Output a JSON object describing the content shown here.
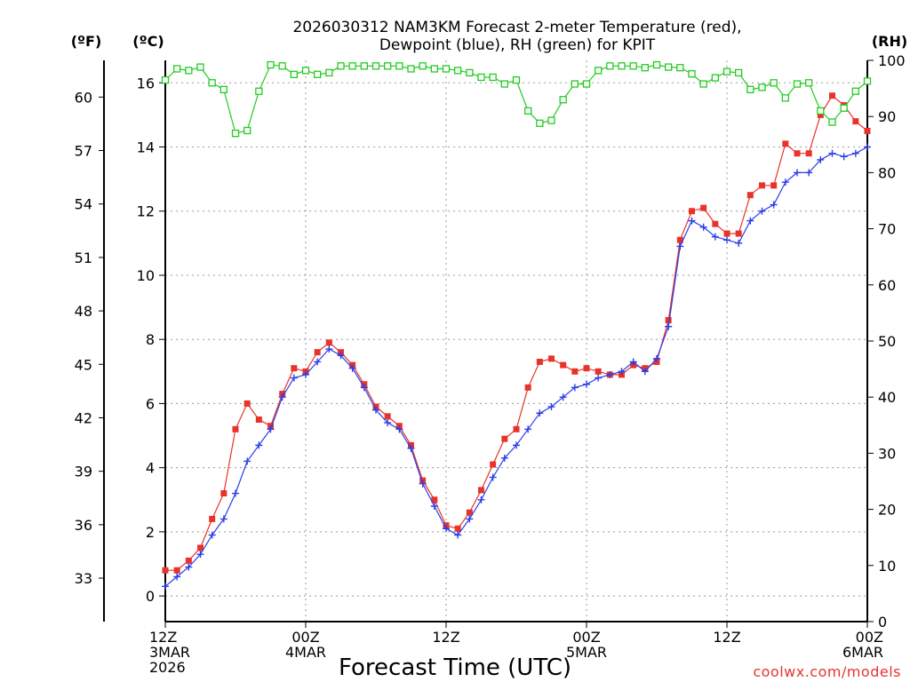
{
  "chart_data": {
    "type": "line",
    "title_line1": "2026030312 NAM3KM Forecast 2-meter Temperature (red),",
    "title_line2": "Dewpoint (blue), RH (green) for KPIT",
    "xlabel": "Forecast Time (UTC)",
    "credit": "coolwx.com/models",
    "unit_f": "(ºF)",
    "unit_c": "(ºC)",
    "unit_rh": "(RH)",
    "x_range_hours": [
      0,
      60
    ],
    "ylim_c": [
      -0.8,
      16.7
    ],
    "ylim_rh": [
      0,
      100
    ],
    "x_ticks": [
      {
        "hour": 0,
        "lines": [
          "12Z",
          "3MAR",
          "2026"
        ]
      },
      {
        "hour": 12,
        "lines": [
          "00Z",
          "4MAR"
        ]
      },
      {
        "hour": 24,
        "lines": [
          "12Z"
        ]
      },
      {
        "hour": 36,
        "lines": [
          "00Z",
          "5MAR"
        ]
      },
      {
        "hour": 48,
        "lines": [
          "12Z"
        ]
      },
      {
        "hour": 60,
        "lines": [
          "00Z",
          "6MAR"
        ]
      }
    ],
    "c_ticks": [
      0,
      2,
      4,
      6,
      8,
      10,
      12,
      14,
      16
    ],
    "f_ticks": [
      33,
      36,
      39,
      42,
      45,
      48,
      51,
      54,
      57,
      60
    ],
    "rh_ticks": [
      0,
      10,
      20,
      30,
      40,
      50,
      60,
      70,
      80,
      90,
      100
    ],
    "colors": {
      "temperature": "#e8332b",
      "dewpoint": "#2b3ee8",
      "rh": "#22cc22",
      "grid": "#9a9a9a"
    },
    "series": [
      {
        "name": "Temperature (°C)",
        "key": "temperature",
        "marker": "square",
        "x": [
          0,
          1,
          2,
          3,
          4,
          5,
          6,
          7,
          8,
          9,
          10,
          11,
          12,
          13,
          14,
          15,
          16,
          17,
          18,
          19,
          20,
          21,
          22,
          23,
          24,
          25,
          26,
          27,
          28,
          29,
          30,
          31,
          32,
          33,
          34,
          35,
          36,
          37,
          38,
          39,
          40,
          41,
          42,
          43,
          44,
          45,
          46,
          47,
          48,
          49,
          50,
          51,
          52,
          53,
          54,
          55,
          56,
          57,
          58,
          59,
          60
        ],
        "values": [
          0.8,
          0.8,
          1.1,
          1.5,
          2.4,
          3.2,
          5.2,
          6.0,
          5.5,
          5.3,
          6.3,
          7.1,
          7.0,
          7.6,
          7.9,
          7.6,
          7.2,
          6.6,
          5.9,
          5.6,
          5.3,
          4.7,
          3.6,
          3.0,
          2.2,
          2.1,
          2.6,
          3.3,
          4.1,
          4.9,
          5.2,
          6.5,
          7.3,
          7.4,
          7.2,
          7.0,
          7.1,
          7.0,
          6.9,
          6.9,
          7.2,
          7.1,
          7.3,
          8.6,
          11.1,
          12.0,
          12.1,
          11.6,
          11.3,
          11.3,
          12.5,
          12.8,
          12.8,
          14.1,
          13.8,
          13.8,
          15.0,
          15.6,
          15.3,
          14.8,
          14.5
        ]
      },
      {
        "name": "Dewpoint (°C)",
        "key": "dewpoint",
        "marker": "plus",
        "x": [
          0,
          1,
          2,
          3,
          4,
          5,
          6,
          7,
          8,
          9,
          10,
          11,
          12,
          13,
          14,
          15,
          16,
          17,
          18,
          19,
          20,
          21,
          22,
          23,
          24,
          25,
          26,
          27,
          28,
          29,
          30,
          31,
          32,
          33,
          34,
          35,
          36,
          37,
          38,
          39,
          40,
          41,
          42,
          43,
          44,
          45,
          46,
          47,
          48,
          49,
          50,
          51,
          52,
          53,
          54,
          55,
          56,
          57,
          58,
          59,
          60
        ],
        "values": [
          0.3,
          0.6,
          0.9,
          1.3,
          1.9,
          2.4,
          3.2,
          4.2,
          4.7,
          5.2,
          6.2,
          6.8,
          6.9,
          7.3,
          7.7,
          7.5,
          7.1,
          6.5,
          5.8,
          5.4,
          5.2,
          4.6,
          3.5,
          2.8,
          2.1,
          1.9,
          2.4,
          3.0,
          3.7,
          4.3,
          4.7,
          5.2,
          5.7,
          5.9,
          6.2,
          6.5,
          6.6,
          6.8,
          6.9,
          7.0,
          7.3,
          7.0,
          7.4,
          8.4,
          10.9,
          11.7,
          11.5,
          11.2,
          11.1,
          11.0,
          11.7,
          12.0,
          12.2,
          12.9,
          13.2,
          13.2,
          13.6,
          13.8,
          13.7,
          13.8,
          14.0
        ]
      },
      {
        "name": "RH (%)",
        "key": "rh",
        "marker": "square-open",
        "x": [
          0,
          1,
          2,
          3,
          4,
          5,
          6,
          7,
          8,
          9,
          10,
          11,
          12,
          13,
          14,
          15,
          16,
          17,
          18,
          19,
          20,
          21,
          22,
          23,
          24,
          25,
          26,
          27,
          28,
          29,
          30,
          31,
          32,
          33,
          34,
          35,
          36,
          37,
          38,
          39,
          40,
          41,
          42,
          43,
          44,
          45,
          46,
          47,
          48,
          49,
          50,
          51,
          52,
          53,
          54,
          55,
          56,
          57,
          58,
          59,
          60
        ],
        "values": [
          96.5,
          98.5,
          98.2,
          98.8,
          96.0,
          94.8,
          87.0,
          87.5,
          94.5,
          99.2,
          99.0,
          97.5,
          98.2,
          97.5,
          97.8,
          99.0,
          99.0,
          99.0,
          99.0,
          99.0,
          99.0,
          98.5,
          99.0,
          98.5,
          98.5,
          98.2,
          97.8,
          97.0,
          97.0,
          95.8,
          96.5,
          91.0,
          88.8,
          89.3,
          93.0,
          95.8,
          95.8,
          98.2,
          99.0,
          99.0,
          99.0,
          98.7,
          99.2,
          98.8,
          98.7,
          97.6,
          95.8,
          96.9,
          98.0,
          97.8,
          94.8,
          95.2,
          96.0,
          93.3,
          95.8,
          96.0,
          91.0,
          89.0,
          91.5,
          94.5,
          96.3
        ]
      }
    ]
  }
}
